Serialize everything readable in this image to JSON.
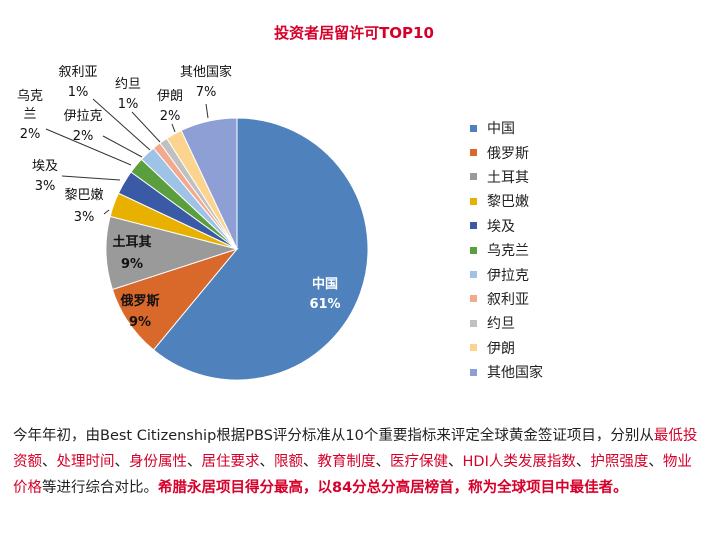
{
  "chart_data": {
    "type": "pie",
    "title": "投资者居留许可TOP10",
    "categories": [
      "中国",
      "俄罗斯",
      "土耳其",
      "黎巴嫩",
      "埃及",
      "乌克兰",
      "伊拉克",
      "叙利亚",
      "约旦",
      "伊朗",
      "其他国家"
    ],
    "values": [
      61,
      9,
      9,
      3,
      3,
      2,
      2,
      1,
      1,
      2,
      7
    ],
    "value_labels": [
      "61%",
      "9%",
      "9%",
      "3%",
      "3%",
      "2%",
      "2%",
      "1%",
      "1%",
      "2%",
      "7%"
    ],
    "colors": [
      "#4f81bd",
      "#d9682b",
      "#9a9a9a",
      "#e8b100",
      "#3a5aa6",
      "#5a9e3e",
      "#9ec3e6",
      "#f2a98e",
      "#c0c0c0",
      "#fbd58f",
      "#8e9fd6"
    ],
    "legend_position": "right"
  },
  "text": {
    "p1": "今年年初，由Best Citizenship根据PBS评分标准从10个重要指标来评定全球黄金签证项目，分别从",
    "hl": [
      "最低投资额",
      "处理时间",
      "身份属性",
      "居住要求",
      "限额",
      "教育制度",
      "医疗保健",
      "HDI人类发展指数",
      "护照强度",
      "物业价格"
    ],
    "sep": "、",
    "p2": "等进行综合对比。",
    "p3": "希腊永居项目得分最高，以84分总分高居榜首，称为全球项目中最佳者。"
  }
}
